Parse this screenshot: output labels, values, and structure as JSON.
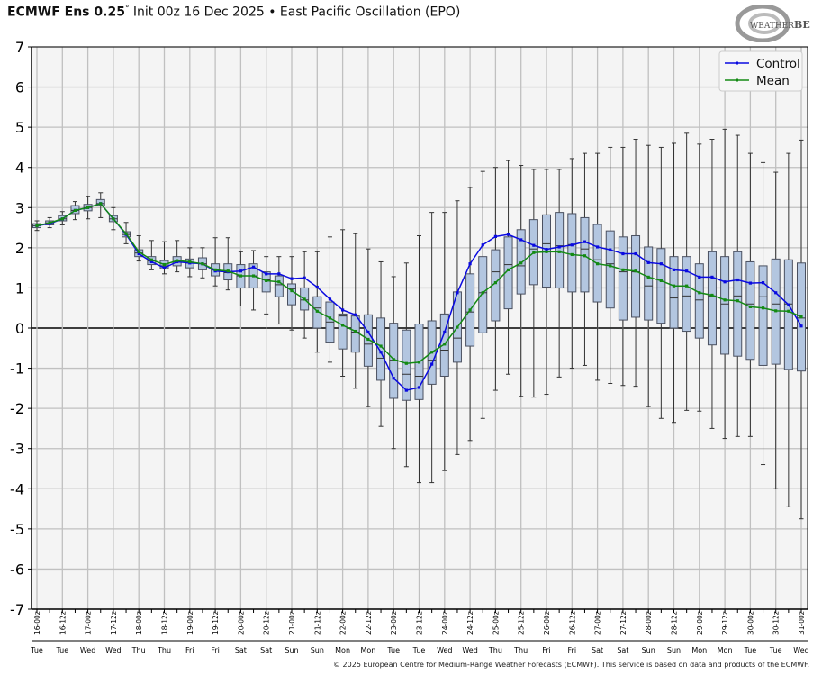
{
  "header": {
    "model": "ECMWF Ens 0.25",
    "degree": "°",
    "description": "Init 00z 16 Dec 2025 • East Pacific Oscillation (EPO)"
  },
  "logo": {
    "text": "WeatherBELL",
    "sub": "Analytics LLC"
  },
  "copyright": "© 2025 European Centre for Medium-Range Weather Forecasts (ECMWF). This service is based on data and products of the ECMWF.",
  "colors": {
    "control": "#0a0ae0",
    "mean": "#138a13",
    "box_fill": "#b3c6e0",
    "box_stroke": "#4a5060",
    "plot_bg": "#f4f4f4",
    "grid": "#c0c0c0"
  },
  "chart_data": {
    "type": "box",
    "title": "",
    "ylim": [
      -7,
      7
    ],
    "yticks": [
      "-7",
      "-6",
      "-5",
      "-4",
      "-3",
      "-2",
      "-1",
      "0",
      "1",
      "2",
      "3",
      "4",
      "5",
      "6",
      "7"
    ],
    "grid": true,
    "legend_position": "top-right",
    "legend": [
      "Control",
      "Mean"
    ],
    "x_labels": [
      "16-00z",
      "16-12z",
      "17-00z",
      "17-12z",
      "18-00z",
      "18-12z",
      "19-00z",
      "19-12z",
      "20-00z",
      "20-12z",
      "21-00z",
      "21-12z",
      "22-00z",
      "22-12z",
      "23-00z",
      "23-12z",
      "24-00z",
      "24-12z",
      "25-00z",
      "25-12z",
      "26-00z",
      "26-12z",
      "27-00z",
      "27-12z",
      "28-00z",
      "28-12z",
      "29-00z",
      "29-12z",
      "30-00z",
      "30-12z",
      "31-00z"
    ],
    "weekday_labels": [
      "Tue",
      "Tue",
      "Wed",
      "Wed",
      "Thu",
      "Thu",
      "Fri",
      "Fri",
      "Sat",
      "Sat",
      "Sun",
      "Sun",
      "Mon",
      "Mon",
      "Tue",
      "Tue",
      "Wed",
      "Wed",
      "Thu",
      "Thu",
      "Fri",
      "Fri",
      "Sat",
      "Sat",
      "Sun",
      "Sun",
      "Mon",
      "Mon",
      "Tue",
      "Tue",
      "Wed"
    ],
    "step_hours": 6,
    "series": [
      {
        "name": "Control",
        "values": [
          2.55,
          2.6,
          2.72,
          2.93,
          3.0,
          3.1,
          2.72,
          2.33,
          1.85,
          1.65,
          1.5,
          1.65,
          1.62,
          1.6,
          1.42,
          1.4,
          1.42,
          1.52,
          1.35,
          1.35,
          1.23,
          1.25,
          1.02,
          0.72,
          0.45,
          0.33,
          -0.1,
          -0.6,
          -1.25,
          -1.55,
          -1.48,
          -0.9,
          -0.1,
          0.88,
          1.6,
          2.07,
          2.28,
          2.33,
          2.2,
          2.06,
          1.96,
          2.02,
          2.07,
          2.15,
          2.02,
          1.95,
          1.85,
          1.85,
          1.63,
          1.6,
          1.45,
          1.42,
          1.27,
          1.27,
          1.15,
          1.2,
          1.12,
          1.13,
          0.88,
          0.58,
          0.05
        ]
      },
      {
        "name": "Mean",
        "values": [
          2.55,
          2.62,
          2.72,
          2.93,
          3.0,
          3.1,
          2.72,
          2.35,
          1.9,
          1.7,
          1.58,
          1.68,
          1.65,
          1.6,
          1.45,
          1.42,
          1.3,
          1.3,
          1.18,
          1.15,
          0.93,
          0.72,
          0.42,
          0.25,
          0.07,
          -0.08,
          -0.28,
          -0.45,
          -0.78,
          -0.88,
          -0.85,
          -0.6,
          -0.4,
          0.02,
          0.45,
          0.88,
          1.13,
          1.45,
          1.62,
          1.88,
          1.9,
          1.9,
          1.83,
          1.8,
          1.6,
          1.55,
          1.45,
          1.42,
          1.27,
          1.18,
          1.05,
          1.05,
          0.88,
          0.82,
          0.7,
          0.68,
          0.53,
          0.5,
          0.43,
          0.42,
          0.28
        ]
      }
    ],
    "boxes": [
      [
        2.43,
        2.5,
        2.55,
        2.6,
        2.67
      ],
      [
        2.5,
        2.57,
        2.62,
        2.67,
        2.75
      ],
      [
        2.57,
        2.67,
        2.72,
        2.8,
        2.9
      ],
      [
        2.7,
        2.85,
        2.93,
        3.05,
        3.15
      ],
      [
        2.72,
        2.92,
        3.0,
        3.08,
        3.27
      ],
      [
        2.75,
        3.05,
        3.1,
        3.2,
        3.37
      ],
      [
        2.45,
        2.65,
        2.72,
        2.8,
        3.0
      ],
      [
        2.1,
        2.27,
        2.33,
        2.4,
        2.63
      ],
      [
        1.67,
        1.78,
        1.87,
        1.95,
        2.3
      ],
      [
        1.45,
        1.58,
        1.67,
        1.78,
        2.18
      ],
      [
        1.35,
        1.48,
        1.55,
        1.68,
        2.15
      ],
      [
        1.4,
        1.55,
        1.65,
        1.78,
        2.18
      ],
      [
        1.28,
        1.5,
        1.62,
        1.72,
        2.0
      ],
      [
        1.25,
        1.45,
        1.6,
        1.75,
        2.0
      ],
      [
        1.05,
        1.3,
        1.45,
        1.6,
        2.25
      ],
      [
        0.95,
        1.2,
        1.38,
        1.6,
        2.25
      ],
      [
        0.55,
        1.0,
        1.3,
        1.58,
        1.9
      ],
      [
        0.45,
        1.0,
        1.3,
        1.6,
        1.93
      ],
      [
        0.35,
        0.9,
        1.2,
        1.4,
        1.78
      ],
      [
        0.1,
        0.78,
        1.08,
        1.3,
        1.78
      ],
      [
        -0.05,
        0.58,
        0.98,
        1.1,
        1.78
      ],
      [
        -0.25,
        0.45,
        0.7,
        1.0,
        1.9
      ],
      [
        -0.6,
        0.0,
        0.5,
        0.78,
        1.9
      ],
      [
        -0.85,
        -0.35,
        0.15,
        0.65,
        2.27
      ],
      [
        -1.2,
        -0.52,
        0.3,
        0.35,
        2.45
      ],
      [
        -1.5,
        -0.6,
        -0.1,
        0.3,
        2.35
      ],
      [
        -1.95,
        -0.95,
        -0.4,
        0.33,
        1.97
      ],
      [
        -2.45,
        -1.3,
        -0.75,
        0.25,
        1.65
      ],
      [
        -3.0,
        -1.75,
        -0.8,
        0.12,
        1.28
      ],
      [
        -3.45,
        -1.8,
        -1.15,
        -0.05,
        1.62
      ],
      [
        -3.85,
        -1.78,
        -1.2,
        0.1,
        2.3
      ],
      [
        -3.85,
        -1.4,
        -0.8,
        0.18,
        2.88
      ],
      [
        -3.55,
        -1.2,
        -0.55,
        0.35,
        2.88
      ],
      [
        -3.15,
        -0.85,
        -0.25,
        0.9,
        3.17
      ],
      [
        -2.8,
        -0.45,
        0.4,
        1.35,
        3.5
      ],
      [
        -2.25,
        -0.12,
        0.88,
        1.78,
        3.9
      ],
      [
        -1.55,
        0.18,
        1.4,
        1.95,
        4.0
      ],
      [
        -1.15,
        0.48,
        1.58,
        2.27,
        4.17
      ],
      [
        -1.7,
        0.85,
        1.55,
        2.45,
        4.05
      ],
      [
        -1.72,
        1.08,
        1.97,
        2.7,
        3.95
      ],
      [
        -1.65,
        1.02,
        2.1,
        2.82,
        3.95
      ],
      [
        -1.22,
        1.0,
        2.05,
        2.88,
        3.95
      ],
      [
        -1.0,
        0.9,
        2.08,
        2.85,
        4.22
      ],
      [
        -0.93,
        0.9,
        1.97,
        2.75,
        4.35
      ],
      [
        -1.3,
        0.65,
        1.7,
        2.58,
        4.35
      ],
      [
        -1.38,
        0.5,
        1.6,
        2.42,
        4.5
      ],
      [
        -1.43,
        0.2,
        1.4,
        2.27,
        4.5
      ],
      [
        -1.45,
        0.27,
        1.4,
        2.3,
        4.7
      ],
      [
        -1.95,
        0.2,
        1.05,
        2.02,
        4.55
      ],
      [
        -2.25,
        0.12,
        1.0,
        1.98,
        4.5
      ],
      [
        -2.35,
        0.0,
        0.75,
        1.78,
        4.6
      ],
      [
        -2.05,
        -0.08,
        0.8,
        1.78,
        4.85
      ],
      [
        -2.07,
        -0.25,
        0.7,
        1.6,
        4.58
      ],
      [
        -2.5,
        -0.42,
        0.8,
        1.9,
        4.7
      ],
      [
        -2.75,
        -0.65,
        0.6,
        1.78,
        4.95
      ],
      [
        -2.7,
        -0.7,
        0.8,
        1.9,
        4.8
      ],
      [
        -2.7,
        -0.78,
        0.6,
        1.65,
        4.35
      ],
      [
        -3.4,
        -0.93,
        0.78,
        1.55,
        4.12
      ],
      [
        -4.0,
        -0.9,
        0.6,
        1.72,
        3.88
      ],
      [
        -4.45,
        -1.03,
        0.6,
        1.7,
        4.35
      ],
      [
        -4.75,
        -1.07,
        0.25,
        1.62,
        4.68
      ]
    ],
    "box_fields": [
      "min",
      "q1",
      "median",
      "q3",
      "max"
    ]
  }
}
